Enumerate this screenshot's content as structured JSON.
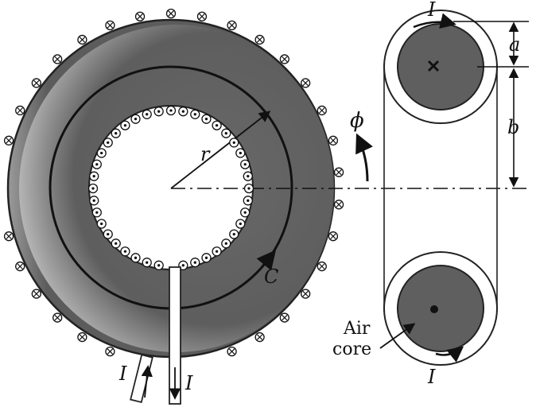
{
  "labels": {
    "radius": "r",
    "flux": "ϕ",
    "contour": "C",
    "current_top": "I",
    "current_bottom": "I",
    "current_lead_left": "I",
    "current_lead_right": "I",
    "dim_a": "a",
    "dim_b": "b",
    "air": "Air",
    "core": "core"
  },
  "colors": {
    "core_fill": "#5a5a5a",
    "core_edge": "#d8d8d8",
    "ink": "#111111",
    "background": "#ffffff",
    "hole": "#ffffff"
  },
  "symbols": {
    "into_page": "cross-in-circle",
    "out_of_page": "dot-in-circle"
  }
}
